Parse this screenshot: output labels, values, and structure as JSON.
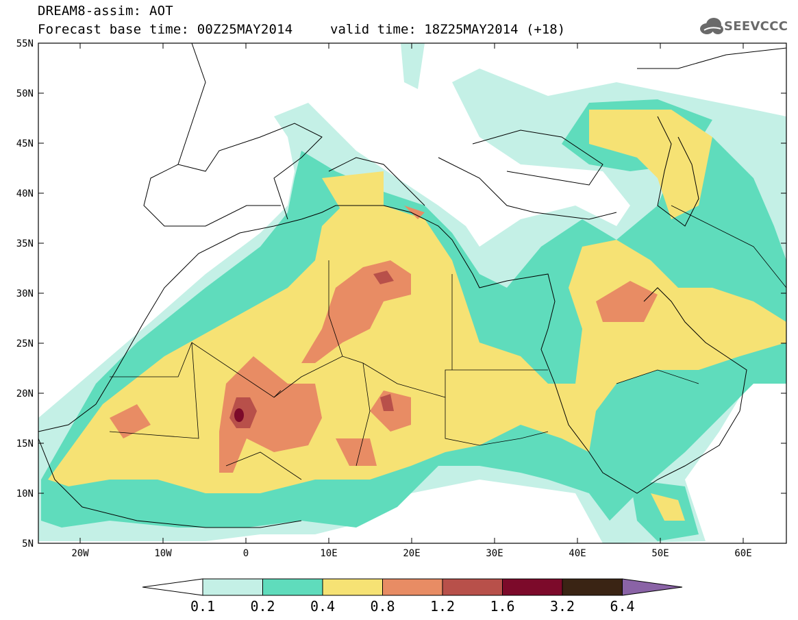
{
  "title": {
    "line1": "DREAM8-assim: AOT",
    "line2": "Forecast base time: 00Z25MAY2014",
    "line2b": "valid time: 18Z25MAY2014 (+18)"
  },
  "logo": {
    "text": "SEEVCCC",
    "icon": "cloud-icon"
  },
  "map": {
    "lat_labels": [
      "55N",
      "50N",
      "45N",
      "40N",
      "35N",
      "30N",
      "25N",
      "20N",
      "15N",
      "10N",
      "5N"
    ],
    "lon_labels": [
      "20W",
      "10W",
      "0",
      "10E",
      "20E",
      "30E",
      "40E",
      "50E",
      "60E"
    ]
  },
  "legend": {
    "values": [
      "0.1",
      "0.2",
      "0.4",
      "0.8",
      "1.2",
      "1.6",
      "3.2",
      "6.4"
    ],
    "colors": [
      "#c4f0e6",
      "#5fdcbc",
      "#f6e274",
      "#e88c64",
      "#b8504a",
      "#7c0a2a",
      "#3a2414",
      "#8a63a6"
    ],
    "under_color": "#ffffff"
  }
}
